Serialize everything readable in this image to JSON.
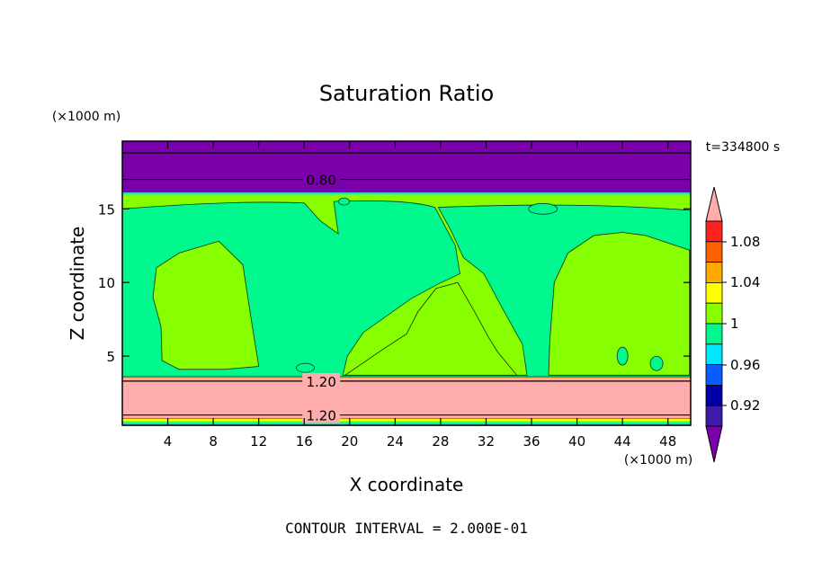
{
  "chart_data": {
    "type": "heatmap",
    "title": "Saturation Ratio",
    "xlabel": "X coordinate",
    "ylabel": "Z coordinate",
    "x_unit": "(×1000 m)",
    "y_unit": "(×1000 m)",
    "xlim": [
      0,
      50
    ],
    "ylim": [
      0.3,
      19.6
    ],
    "x_ticks": [
      4,
      8,
      12,
      16,
      20,
      24,
      28,
      32,
      36,
      40,
      44,
      48
    ],
    "y_ticks": [
      5,
      10,
      15
    ],
    "time_label": "t=334800 s",
    "footer": "CONTOUR INTERVAL = 2.000E-01",
    "contour_labels": [
      {
        "text": "0.80",
        "x": 17.5,
        "z": 17.0
      },
      {
        "text": "1.20",
        "x": 17.5,
        "z": 3.3
      },
      {
        "text": "1.20",
        "x": 17.5,
        "z": 1.0
      }
    ],
    "colorbar": {
      "tick_labels": [
        "1.08",
        "1.04",
        "1",
        "0.96",
        "0.92"
      ],
      "levels": [
        {
          "value": 0.9,
          "color": "#7b00ac"
        },
        {
          "value": 0.92,
          "color": "#3d1aa8"
        },
        {
          "value": 0.94,
          "color": "#0000a8"
        },
        {
          "value": 0.96,
          "color": "#0a5cff"
        },
        {
          "value": 0.98,
          "color": "#00e8ff"
        },
        {
          "value": 1.0,
          "color": "#00f88e"
        },
        {
          "value": 1.02,
          "color": "#88ff00"
        },
        {
          "value": 1.04,
          "color": "#ffff00"
        },
        {
          "value": 1.06,
          "color": "#ffaa00"
        },
        {
          "value": 1.08,
          "color": "#ff6000"
        },
        {
          "value": 1.1,
          "color": "#ff2020"
        },
        {
          "value": 1.12,
          "color": "#ffacac"
        }
      ]
    },
    "bands": [
      {
        "z0": 16.1,
        "z1": 19.6,
        "color": "#7b00ac"
      },
      {
        "z0": 3.6,
        "z1": 16.1,
        "color": "#88ff00"
      },
      {
        "z0": 0.8,
        "z1": 3.6,
        "color": "#ffacac"
      },
      {
        "z0": 0.3,
        "z1": 0.8,
        "color": "#ff6000"
      }
    ],
    "contour_lines_z": [
      18.8,
      17.0,
      3.3,
      1.0
    ]
  }
}
